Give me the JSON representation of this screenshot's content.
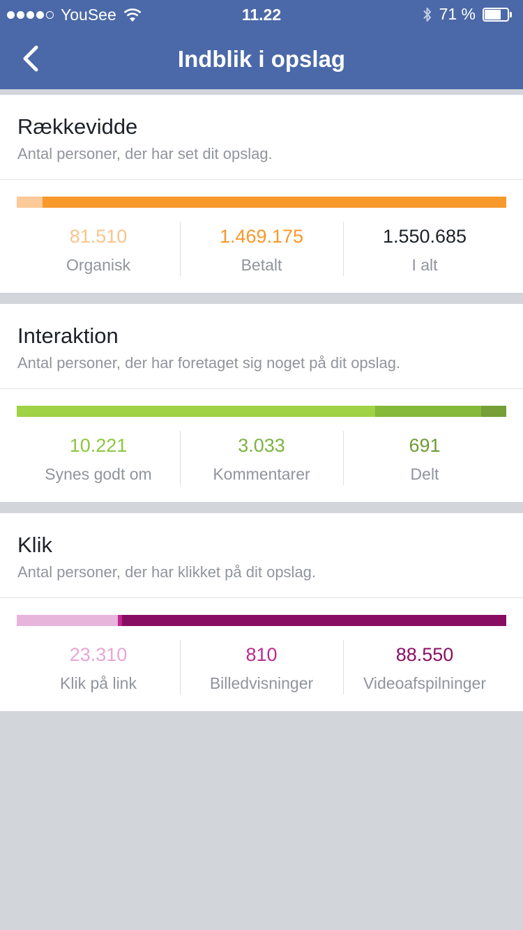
{
  "status_bar": {
    "carrier": "YouSee",
    "time": "11.22",
    "battery": "71 %",
    "battery_level": 0.71
  },
  "nav": {
    "title": "Indblik i opslag"
  },
  "sections": [
    {
      "id": "reach",
      "title": "Rækkevidde",
      "subtitle": "Antal personer, der har set dit opslag.",
      "stats": [
        {
          "value": "81.510",
          "label": "Organisk",
          "color": "#f9c48b"
        },
        {
          "value": "1.469.175",
          "label": "Betalt",
          "color": "#f7982a"
        },
        {
          "value": "1.550.685",
          "label": "I alt",
          "color": "#1d2129"
        }
      ],
      "bar": [
        {
          "share": 0.0526,
          "color": "#fcc998"
        },
        {
          "share": 0.9474,
          "color": "#f7992b"
        }
      ]
    },
    {
      "id": "engagement",
      "title": "Interaktion",
      "subtitle": "Antal personer, der har foretaget sig noget på dit opslag.",
      "stats": [
        {
          "value": "10.221",
          "label": "Synes godt om",
          "color": "#8cc63f"
        },
        {
          "value": "3.033",
          "label": "Kommentarer",
          "color": "#7cb342"
        },
        {
          "value": "691",
          "label": "Delt",
          "color": "#6e9b34"
        }
      ],
      "bar": [
        {
          "share": 0.7318,
          "color": "#9fd244"
        },
        {
          "share": 0.2172,
          "color": "#84b93a"
        },
        {
          "share": 0.051,
          "color": "#779f37"
        }
      ]
    },
    {
      "id": "clicks",
      "title": "Klik",
      "subtitle": "Antal personer, der har klikket på dit opslag.",
      "stats": [
        {
          "value": "23.310",
          "label": "Klik på link",
          "color": "#e7a6d5"
        },
        {
          "value": "810",
          "label": "Billedvisninger",
          "color": "#b92c8e"
        },
        {
          "value": "88.550",
          "label": "Videoafspilninger",
          "color": "#8a1063"
        }
      ],
      "bar": [
        {
          "share": 0.2066,
          "color": "#e7b4dc"
        },
        {
          "share": 0.0084,
          "color": "#c2278f"
        },
        {
          "share": 0.785,
          "color": "#880d62"
        }
      ]
    }
  ]
}
